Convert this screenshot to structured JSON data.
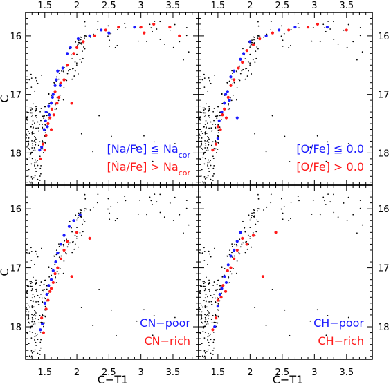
{
  "figure": {
    "x_axis_label": "C−T1",
    "y_axis_label": "C",
    "colors": {
      "group1": "#1a1aff",
      "group2": "#ff1a1a",
      "other": "#000000"
    }
  },
  "chart_data": [
    {
      "panel": "top-left",
      "type": "scatter",
      "title": "",
      "xlabel": "",
      "ylabel": "C",
      "xlim": [
        1.2,
        3.9
      ],
      "ylim": [
        18.55,
        15.6
      ],
      "y_inverted": true,
      "xticks": [
        1.5,
        2,
        2.5,
        3,
        3.5
      ],
      "yticks": [
        16,
        17,
        18
      ],
      "legend": {
        "entries": [
          {
            "prefix": "[Na/Fe] ≦ Na",
            "sub": "cor",
            "color": "#1a1aff"
          },
          {
            "prefix": "[Na/Fe] > Na",
            "sub": "cor",
            "color": "#ff1a1a"
          }
        ],
        "placement": "lower-right"
      },
      "series": [
        {
          "name": "[Na/Fe] ≦ Nacor",
          "color": "#1a1aff",
          "points": [
            [
              1.42,
              17.95
            ],
            [
              1.45,
              17.9
            ],
            [
              1.49,
              17.6
            ],
            [
              1.51,
              17.45
            ],
            [
              1.52,
              17.3
            ],
            [
              1.54,
              17.55
            ],
            [
              1.56,
              17.2
            ],
            [
              1.57,
              17.35
            ],
            [
              1.6,
              17.15
            ],
            [
              1.62,
              17.05
            ],
            [
              1.63,
              17.0
            ],
            [
              1.66,
              16.85
            ],
            [
              1.68,
              16.75
            ],
            [
              1.7,
              16.6
            ],
            [
              1.74,
              16.85
            ],
            [
              1.78,
              16.55
            ],
            [
              1.85,
              16.3
            ],
            [
              1.9,
              16.2
            ],
            [
              2.02,
              16.05
            ],
            [
              2.2,
              16.0
            ],
            [
              2.38,
              15.9
            ],
            [
              2.5,
              15.95
            ],
            [
              2.9,
              15.85
            ]
          ]
        },
        {
          "name": "[Na/Fe] > Nacor",
          "color": "#ff1a1a",
          "points": [
            [
              1.43,
              18.1
            ],
            [
              1.47,
              17.85
            ],
            [
              1.5,
              17.95
            ],
            [
              1.52,
              17.7
            ],
            [
              1.55,
              17.5
            ],
            [
              1.58,
              17.4
            ],
            [
              1.6,
              17.6
            ],
            [
              1.61,
              17.25
            ],
            [
              1.64,
              17.35
            ],
            [
              1.66,
              16.95
            ],
            [
              1.69,
              17.15
            ],
            [
              1.72,
              17.05
            ],
            [
              1.75,
              16.8
            ],
            [
              1.8,
              16.75
            ],
            [
              1.85,
              16.5
            ],
            [
              1.92,
              17.15
            ],
            [
              1.95,
              16.3
            ],
            [
              2.0,
              16.2
            ],
            [
              2.1,
              16.1
            ],
            [
              2.28,
              16.0
            ],
            [
              2.45,
              15.9
            ],
            [
              2.65,
              15.85
            ],
            [
              3.0,
              15.85
            ],
            [
              3.05,
              15.95
            ],
            [
              3.2,
              15.8
            ],
            [
              3.45,
              15.85
            ],
            [
              3.6,
              16.0
            ]
          ]
        }
      ]
    },
    {
      "panel": "top-right",
      "type": "scatter",
      "title": "",
      "xlabel": "",
      "ylabel": "",
      "xlim": [
        1.2,
        3.9
      ],
      "ylim": [
        18.55,
        15.6
      ],
      "y_inverted": true,
      "xticks": [
        1.5,
        2,
        2.5,
        3,
        3.5
      ],
      "yticks": [
        16,
        17,
        18
      ],
      "legend": {
        "entries": [
          {
            "prefix": "[O/Fe] ≦ 0.0",
            "sub": "",
            "color": "#1a1aff"
          },
          {
            "prefix": "[O/Fe] > 0.0",
            "sub": "",
            "color": "#ff1a1a"
          }
        ],
        "placement": "lower-right"
      },
      "series": [
        {
          "name": "[O/Fe] ≦ 0.0",
          "color": "#1a1aff",
          "points": [
            [
              1.5,
              17.75
            ],
            [
              1.52,
              17.45
            ],
            [
              1.56,
              17.3
            ],
            [
              1.6,
              17.15
            ],
            [
              1.62,
              17.0
            ],
            [
              1.65,
              16.95
            ],
            [
              1.68,
              17.1
            ],
            [
              1.7,
              16.7
            ],
            [
              1.75,
              16.6
            ],
            [
              1.8,
              17.4
            ],
            [
              1.85,
              16.4
            ],
            [
              1.9,
              16.3
            ],
            [
              2.0,
              16.1
            ],
            [
              2.25,
              16.0
            ],
            [
              2.45,
              15.9
            ],
            [
              2.7,
              15.85
            ],
            [
              3.2,
              15.85
            ]
          ]
        },
        {
          "name": "[O/Fe] > 0.0",
          "color": "#ff1a1a",
          "points": [
            [
              1.42,
              17.95
            ],
            [
              1.47,
              17.85
            ],
            [
              1.5,
              17.55
            ],
            [
              1.54,
              17.6
            ],
            [
              1.57,
              17.35
            ],
            [
              1.6,
              17.25
            ],
            [
              1.63,
              17.4
            ],
            [
              1.66,
              17.05
            ],
            [
              1.7,
              16.85
            ],
            [
              1.75,
              16.75
            ],
            [
              1.82,
              16.55
            ],
            [
              1.88,
              16.45
            ],
            [
              1.95,
              16.25
            ],
            [
              2.05,
              16.15
            ],
            [
              2.15,
              16.05
            ],
            [
              2.35,
              15.95
            ],
            [
              2.6,
              15.9
            ],
            [
              2.9,
              15.85
            ],
            [
              3.05,
              15.8
            ],
            [
              3.5,
              15.9
            ]
          ]
        }
      ]
    },
    {
      "panel": "bottom-left",
      "type": "scatter",
      "title": "",
      "xlabel": "C−T1",
      "ylabel": "C",
      "xlim": [
        1.2,
        3.9
      ],
      "ylim": [
        18.55,
        15.6
      ],
      "y_inverted": true,
      "xticks": [
        1.5,
        2,
        2.5,
        3,
        3.5
      ],
      "yticks": [
        16,
        17,
        18
      ],
      "legend": {
        "entries": [
          {
            "prefix": "CN−poor",
            "sub": "",
            "color": "#1a1aff"
          },
          {
            "prefix": "CN−rich",
            "sub": "",
            "color": "#ff1a1a"
          }
        ],
        "placement": "lower-right"
      },
      "series": [
        {
          "name": "CN−poor",
          "color": "#1a1aff",
          "points": [
            [
              1.43,
              18.05
            ],
            [
              1.46,
              17.95
            ],
            [
              1.5,
              17.6
            ],
            [
              1.53,
              17.45
            ],
            [
              1.56,
              17.3
            ],
            [
              1.6,
              17.2
            ],
            [
              1.63,
              17.05
            ],
            [
              1.67,
              16.9
            ],
            [
              1.7,
              16.75
            ],
            [
              1.75,
              16.6
            ],
            [
              1.8,
              16.45
            ],
            [
              1.88,
              16.3
            ],
            [
              1.95,
              16.2
            ],
            [
              2.05,
              16.1
            ]
          ]
        },
        {
          "name": "CN−rich",
          "color": "#ff1a1a",
          "points": [
            [
              1.45,
              17.85
            ],
            [
              1.48,
              18.1
            ],
            [
              1.52,
              17.7
            ],
            [
              1.55,
              17.55
            ],
            [
              1.58,
              17.4
            ],
            [
              1.6,
              17.35
            ],
            [
              1.63,
              17.25
            ],
            [
              1.66,
              17.1
            ],
            [
              1.7,
              17.0
            ],
            [
              1.75,
              16.85
            ],
            [
              1.8,
              16.7
            ],
            [
              1.85,
              16.55
            ],
            [
              1.92,
              17.15
            ],
            [
              2.0,
              16.4
            ],
            [
              2.2,
              16.5
            ]
          ]
        }
      ]
    },
    {
      "panel": "bottom-right",
      "type": "scatter",
      "title": "",
      "xlabel": "C−T1",
      "ylabel": "",
      "xlim": [
        1.2,
        3.9
      ],
      "ylim": [
        18.55,
        15.6
      ],
      "y_inverted": true,
      "xticks": [
        1.5,
        2,
        2.5,
        3,
        3.5
      ],
      "yticks": [
        16,
        17,
        18
      ],
      "legend": {
        "entries": [
          {
            "prefix": "CH−poor",
            "sub": "",
            "color": "#1a1aff"
          },
          {
            "prefix": "CH−rich",
            "sub": "",
            "color": "#ff1a1a"
          }
        ],
        "placement": "lower-right"
      },
      "series": [
        {
          "name": "CH−poor",
          "color": "#1a1aff",
          "points": [
            [
              1.45,
              18.0
            ],
            [
              1.5,
              17.65
            ],
            [
              1.53,
              17.45
            ],
            [
              1.56,
              17.35
            ],
            [
              1.6,
              17.15
            ],
            [
              1.63,
              17.25
            ],
            [
              1.66,
              16.95
            ],
            [
              1.7,
              16.8
            ],
            [
              1.75,
              16.7
            ],
            [
              1.8,
              16.55
            ],
            [
              1.85,
              16.4
            ]
          ]
        },
        {
          "name": "CH−rich",
          "color": "#ff1a1a",
          "points": [
            [
              1.42,
              18.05
            ],
            [
              1.47,
              17.85
            ],
            [
              1.5,
              17.55
            ],
            [
              1.55,
              17.5
            ],
            [
              1.58,
              17.3
            ],
            [
              1.62,
              17.4
            ],
            [
              1.65,
              17.05
            ],
            [
              1.7,
              17.0
            ],
            [
              1.75,
              16.85
            ],
            [
              1.8,
              16.7
            ],
            [
              1.88,
              16.5
            ],
            [
              1.95,
              16.6
            ],
            [
              2.05,
              16.45
            ],
            [
              2.2,
              17.15
            ],
            [
              2.4,
              16.4
            ]
          ]
        }
      ]
    }
  ]
}
